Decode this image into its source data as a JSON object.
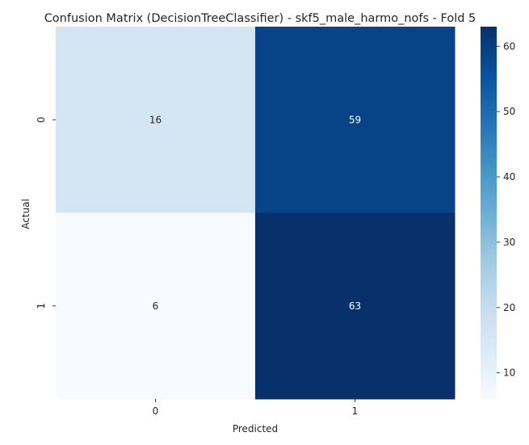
{
  "chart_data": {
    "type": "heatmap",
    "title": "Confusion Matrix (DecisionTreeClassifier) - skf5_male_harmo_nofs - Fold 5",
    "xlabel": "Predicted",
    "ylabel": "Actual",
    "x_categories": [
      "0",
      "1"
    ],
    "y_categories": [
      "0",
      "1"
    ],
    "values": [
      [
        16,
        59
      ],
      [
        6,
        63
      ]
    ],
    "colormap": "Blues",
    "value_range": [
      6,
      63
    ],
    "colorbar_ticks": [
      10,
      20,
      30,
      40,
      50,
      60
    ],
    "grid": false,
    "colorbar_position": "right"
  }
}
